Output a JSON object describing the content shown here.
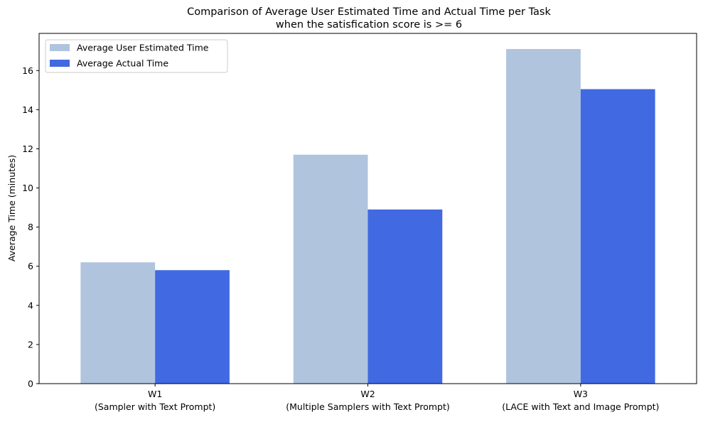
{
  "chart_data": {
    "type": "bar",
    "title": "Comparison of Average User Estimated Time and Actual Time per Task",
    "subtitle": "when the satisfication score is >= 6",
    "xlabel": "",
    "ylabel": "Average Time (minutes)",
    "ylim": [
      0,
      17.9
    ],
    "yticks": [
      0,
      2,
      4,
      6,
      8,
      10,
      12,
      14,
      16
    ],
    "categories": [
      {
        "name": "W1",
        "description": "(Sampler with Text Prompt)"
      },
      {
        "name": "W2",
        "description": "(Multiple Samplers with Text Prompt)"
      },
      {
        "name": "W3",
        "description": "(LACE with Text and Image Prompt)"
      }
    ],
    "series": [
      {
        "name": "Average User Estimated Time",
        "color": "#b0c4de",
        "values": [
          6.2,
          11.7,
          17.1
        ]
      },
      {
        "name": "Average Actual Time",
        "color": "#4169e1",
        "values": [
          5.8,
          8.9,
          15.05
        ]
      }
    ],
    "legend_position": "top-left",
    "grid": false
  }
}
